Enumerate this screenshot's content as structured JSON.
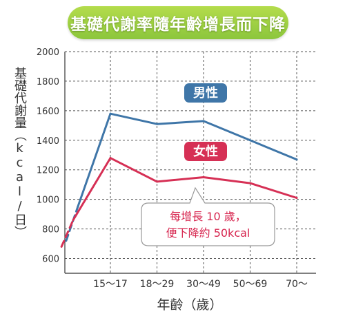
{
  "title": "基礎代謝率隨年齡增長而下降",
  "colors": {
    "banner": "#9fd246",
    "male": "#3f76a8",
    "female": "#d63055",
    "grid": "#555555"
  },
  "chart_data": {
    "type": "line",
    "title": "基礎代謝率隨年齡增長而下降",
    "xlabel": "年齡（歲）",
    "ylabel": "基礎代謝量（kcal/日）",
    "categories": [
      "15～17",
      "18～29",
      "30～49",
      "50～69",
      "70～"
    ],
    "ylim": [
      500,
      2000
    ],
    "yticks": [
      600,
      800,
      1000,
      1200,
      1400,
      1600,
      1800,
      2000
    ],
    "grid": true,
    "series": [
      {
        "name": "男性",
        "values": [
          1580,
          1510,
          1530,
          1400,
          1270
        ],
        "lead_in_dashed": [
          [
            -0.7,
            950
          ],
          [
            -0.95,
            720
          ]
        ]
      },
      {
        "name": "女性",
        "values": [
          1280,
          1120,
          1150,
          1110,
          1010
        ],
        "lead_in_dashed": [
          [
            -0.8,
            860
          ],
          [
            -1.05,
            680
          ]
        ]
      }
    ],
    "annotations": [
      "每增長 10 歲，",
      "便下降約 50kcal"
    ]
  }
}
